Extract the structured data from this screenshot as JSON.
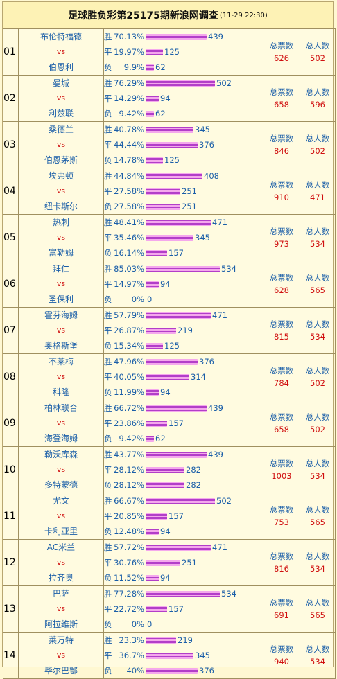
{
  "title": "足球胜负彩第25175期新浪网调查",
  "time": "(11-29 22:30)",
  "labels": {
    "win": "胜",
    "draw": "平",
    "lose": "负",
    "vs": "vs",
    "total_votes": "总票数",
    "total_people": "总人数"
  },
  "matches": [
    {
      "no": "01",
      "home": "布伦特福德",
      "away": "伯恩利",
      "win_pct": "70.13%",
      "win": 439,
      "draw_pct": "19.97%",
      "draw": 125,
      "lose_pct": "9.9%",
      "lose": 62,
      "votes": "626",
      "people": "502"
    },
    {
      "no": "02",
      "home": "曼城",
      "away": "利兹联",
      "win_pct": "76.29%",
      "win": 502,
      "draw_pct": "14.29%",
      "draw": 94,
      "lose_pct": "9.42%",
      "lose": 62,
      "votes": "658",
      "people": "596"
    },
    {
      "no": "03",
      "home": "桑德兰",
      "away": "伯恩茅斯",
      "win_pct": "40.78%",
      "win": 345,
      "draw_pct": "44.44%",
      "draw": 376,
      "lose_pct": "14.78%",
      "lose": 125,
      "votes": "846",
      "people": "502"
    },
    {
      "no": "04",
      "home": "埃弗顿",
      "away": "纽卡斯尔",
      "win_pct": "44.84%",
      "win": 408,
      "draw_pct": "27.58%",
      "draw": 251,
      "lose_pct": "27.58%",
      "lose": 251,
      "votes": "910",
      "people": "471"
    },
    {
      "no": "05",
      "home": "热刺",
      "away": "富勒姆",
      "win_pct": "48.41%",
      "win": 471,
      "draw_pct": "35.46%",
      "draw": 345,
      "lose_pct": "16.14%",
      "lose": 157,
      "votes": "973",
      "people": "534"
    },
    {
      "no": "06",
      "home": "拜仁",
      "away": "圣保利",
      "win_pct": "85.03%",
      "win": 534,
      "draw_pct": "14.97%",
      "draw": 94,
      "lose_pct": "0%",
      "lose": 0,
      "votes": "628",
      "people": "565"
    },
    {
      "no": "07",
      "home": "霍芬海姆",
      "away": "奥格斯堡",
      "win_pct": "57.79%",
      "win": 471,
      "draw_pct": "26.87%",
      "draw": 219,
      "lose_pct": "15.34%",
      "lose": 125,
      "votes": "815",
      "people": "534"
    },
    {
      "no": "08",
      "home": "不莱梅",
      "away": "科隆",
      "win_pct": "47.96%",
      "win": 376,
      "draw_pct": "40.05%",
      "draw": 314,
      "lose_pct": "11.99%",
      "lose": 94,
      "votes": "784",
      "people": "502"
    },
    {
      "no": "09",
      "home": "柏林联合",
      "away": "海登海姆",
      "win_pct": "66.72%",
      "win": 439,
      "draw_pct": "23.86%",
      "draw": 157,
      "lose_pct": "9.42%",
      "lose": 62,
      "votes": "658",
      "people": "502"
    },
    {
      "no": "10",
      "home": "勒沃库森",
      "away": "多特蒙德",
      "win_pct": "43.77%",
      "win": 439,
      "draw_pct": "28.12%",
      "draw": 282,
      "lose_pct": "28.12%",
      "lose": 282,
      "votes": "1003",
      "people": "534"
    },
    {
      "no": "11",
      "home": "尤文",
      "away": "卡利亚里",
      "win_pct": "66.67%",
      "win": 502,
      "draw_pct": "20.85%",
      "draw": 157,
      "lose_pct": "12.48%",
      "lose": 94,
      "votes": "753",
      "people": "565"
    },
    {
      "no": "12",
      "home": "AC米兰",
      "away": "拉齐奥",
      "win_pct": "57.72%",
      "win": 471,
      "draw_pct": "30.76%",
      "draw": 251,
      "lose_pct": "11.52%",
      "lose": 94,
      "votes": "816",
      "people": "534"
    },
    {
      "no": "13",
      "home": "巴萨",
      "away": "阿拉维斯",
      "win_pct": "77.28%",
      "win": 534,
      "draw_pct": "22.72%",
      "draw": 157,
      "lose_pct": "0%",
      "lose": 0,
      "votes": "691",
      "people": "565"
    },
    {
      "no": "14",
      "home": "莱万特",
      "away": "毕尔巴鄂",
      "win_pct": "23.3%",
      "win": 219,
      "draw_pct": "36.7%",
      "draw": 345,
      "lose_pct": "40%",
      "lose": 376,
      "votes": "940",
      "people": "534"
    }
  ]
}
